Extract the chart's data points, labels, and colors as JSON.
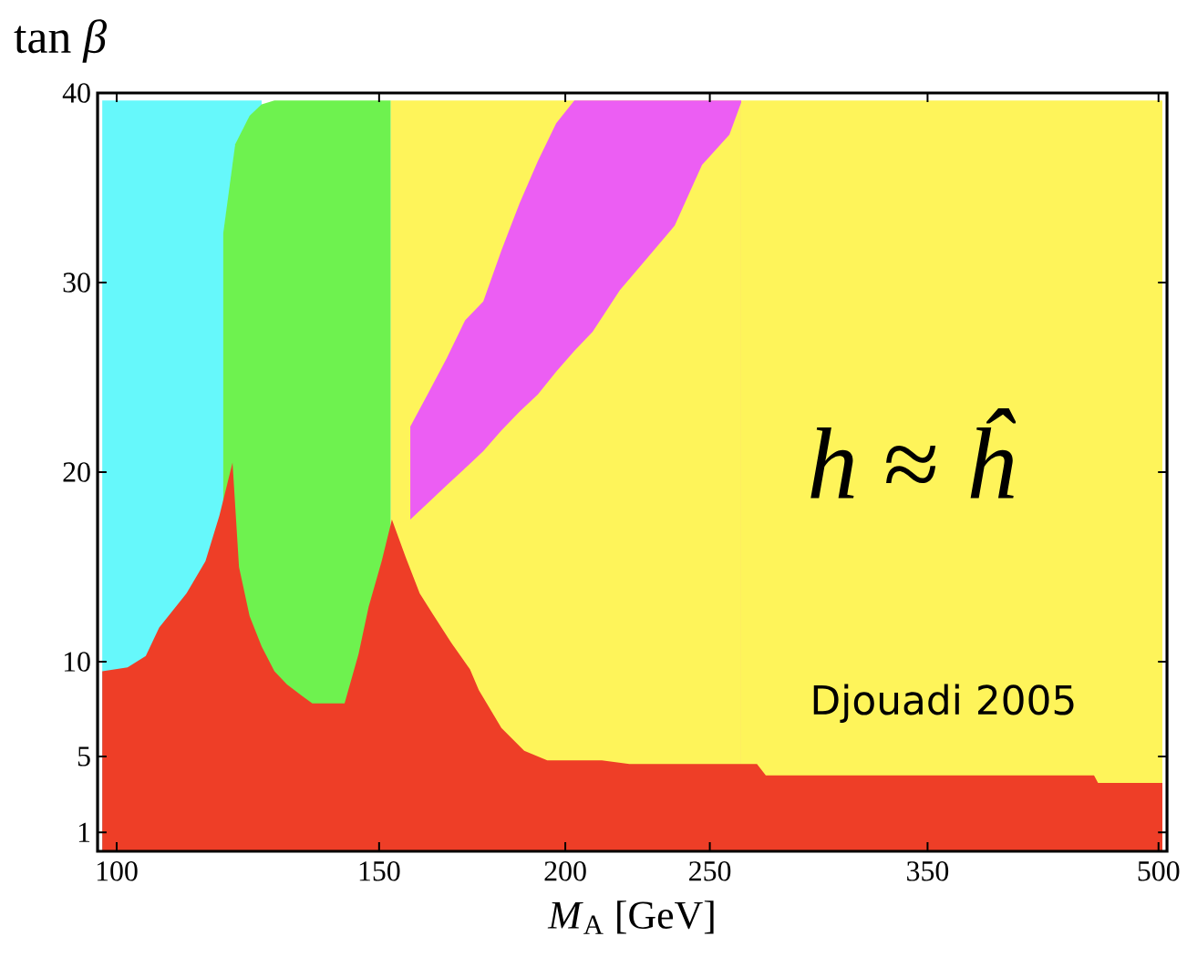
{
  "chart_data": {
    "type": "area",
    "log": "x",
    "xlabel": "*M*$_{A}$ [GeV]",
    "ylabel": "tan *β*",
    "annotations": [
      "*h* ≈ *ĥ*",
      "Djouadi 2005"
    ],
    "xlim": [
      97.1,
      506.6
    ],
    "ylim": [
      0,
      40
    ],
    "xticks": [
      100,
      150,
      200,
      250,
      350,
      500
    ],
    "yticks": [
      1,
      5,
      10,
      20,
      30,
      40
    ],
    "series": [
      {
        "color": "#fef45a",
        "x": [
          152.7,
          503
        ],
        "values": [
          39.6,
          39.6
        ]
      },
      {
        "color": "#66f8fb",
        "x": [
          97.8,
          125.1
        ],
        "values": [
          39.6,
          39.6
        ]
      },
      {
        "color": "#ec5ef3",
        "x": [
          157.4,
          161.9,
          166.5,
          171.3,
          176.2,
          181.2,
          186.4,
          191.7,
          197.2,
          202.8,
          262.4
        ],
        "values": [
          22.4,
          24.2,
          26.0,
          28.0,
          29.0,
          31.7,
          34.2,
          36.4,
          38.4,
          39.6,
          39.6
        ]
      },
      {
        "color": "#fef45a",
        "x": [
          153.0,
          157.4,
          161.9,
          166.5,
          171.3,
          176.2,
          181.2,
          186.4,
          191.7,
          197.2,
          202.8,
          208.6,
          217.6,
          227.0,
          236.8,
          247.0,
          257.7,
          262.4
        ],
        "values": [
          17.2,
          17.5,
          18.4,
          19.3,
          20.2,
          21.1,
          22.2,
          23.2,
          24.1,
          25.3,
          26.4,
          27.4,
          29.6,
          31.3,
          33.0,
          36.2,
          37.8,
          39.5
        ]
      },
      {
        "color": "#6ef24f",
        "x": [
          117.9,
          120.1,
          122.8,
          125.1,
          127.6,
          152.7
        ],
        "values": [
          32.6,
          37.3,
          38.8,
          39.4,
          39.6,
          39.6
        ]
      },
      {
        "color": "#ee3e27",
        "x": [
          97.8,
          101.7,
          104.6,
          106.8,
          111.4,
          114.7,
          117.2,
          119.6,
          120.8,
          122.8,
          125.1,
          127.6,
          130.1,
          132.6,
          135.3,
          142.2,
          145.3,
          147.6,
          150.6,
          153.0,
          156.3,
          159.7,
          163.0,
          167.7,
          172.6,
          175.0,
          181.2,
          187.7,
          194.5,
          211.6,
          220.8,
          268.9,
          272.6,
          452.6,
          455.4,
          503
        ],
        "values": [
          9.5,
          9.7,
          10.3,
          11.8,
          13.6,
          15.3,
          17.7,
          20.5,
          15,
          12.4,
          10.8,
          9.5,
          8.8,
          8.3,
          7.8,
          7.8,
          10.4,
          12.9,
          15.3,
          17.5,
          15.5,
          13.6,
          12.5,
          11,
          9.6,
          8.5,
          6.5,
          5.3,
          4.8,
          4.8,
          4.6,
          4.6,
          4.0,
          4.0,
          3.6,
          3.6
        ]
      }
    ]
  }
}
